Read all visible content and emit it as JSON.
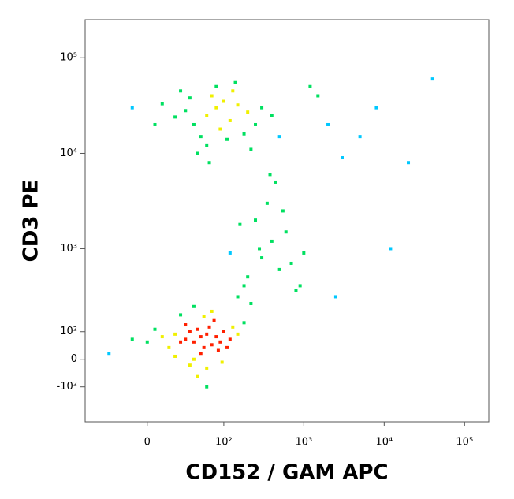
{
  "chart_data": {
    "type": "scatter",
    "xlabel": "CD152 / GAM APC",
    "ylabel": "CD3 PE",
    "xscale": "biexponential",
    "yscale": "biexponential",
    "xlim": [
      -65,
      200000
    ],
    "ylim": [
      -300,
      250000
    ],
    "xticks": [
      0,
      {
        "value": 100,
        "label": "10²"
      },
      {
        "value": 1000,
        "label": "10³"
      },
      {
        "value": 10000,
        "label": "10⁴"
      },
      {
        "value": 100000,
        "label": "10⁵"
      }
    ],
    "yticks": [
      {
        "value": -100,
        "label": "-10²"
      },
      0,
      {
        "value": 100,
        "label": "10²"
      },
      {
        "value": 1000,
        "label": "10³"
      },
      {
        "value": 10000,
        "label": "10⁴"
      },
      {
        "value": 100000,
        "label": "10⁵"
      }
    ],
    "colormap": [
      "#0000c8",
      "#00c8ff",
      "#00e060",
      "#f0f000",
      "#ff2000"
    ],
    "x": [
      50,
      40,
      60,
      30,
      70,
      45,
      55,
      35,
      80,
      25,
      65,
      50,
      90,
      20,
      100,
      15,
      75,
      40,
      60,
      30,
      120,
      10,
      45,
      85,
      55,
      5,
      130,
      35,
      70,
      20,
      150,
      0,
      95,
      40,
      -10,
      180,
      60,
      25,
      110,
      -30,
      60,
      80,
      40,
      100,
      30,
      120,
      70,
      50,
      150,
      20,
      90,
      200,
      10,
      130,
      60,
      250,
      35,
      110,
      300,
      5,
      80,
      180,
      45,
      400,
      -10,
      140,
      65,
      500,
      25,
      220,
      200,
      300,
      150,
      400,
      250,
      500,
      120,
      350,
      600,
      180,
      700,
      450,
      280,
      800,
      220,
      550,
      1000,
      160,
      380,
      900,
      2000,
      5000,
      3000,
      1500,
      8000,
      20000,
      40000,
      2500,
      12000,
      1200
    ],
    "y": [
      80,
      60,
      90,
      70,
      50,
      110,
      40,
      100,
      80,
      60,
      120,
      20,
      60,
      90,
      100,
      40,
      150,
      0,
      -30,
      130,
      70,
      80,
      -60,
      30,
      170,
      110,
      120,
      -20,
      200,
      10,
      90,
      60,
      -10,
      230,
      70,
      140,
      -100,
      180,
      40,
      20,
      25000,
      30000,
      20000,
      35000,
      28000,
      22000,
      40000,
      15000,
      32000,
      24000,
      18000,
      27000,
      33000,
      45000,
      12000,
      20000,
      38000,
      14000,
      30000,
      20000,
      50000,
      16000,
      10000,
      25000,
      30000,
      55000,
      8000,
      15000,
      45000,
      11000,
      500,
      800,
      300,
      1200,
      2000,
      600,
      900,
      3000,
      1500,
      400,
      700,
      5000,
      1000,
      350,
      250,
      2500,
      900,
      1800,
      6000,
      400,
      20000,
      15000,
      9000,
      40000,
      30000,
      8000,
      60000,
      300,
      1000,
      50000
    ]
  }
}
